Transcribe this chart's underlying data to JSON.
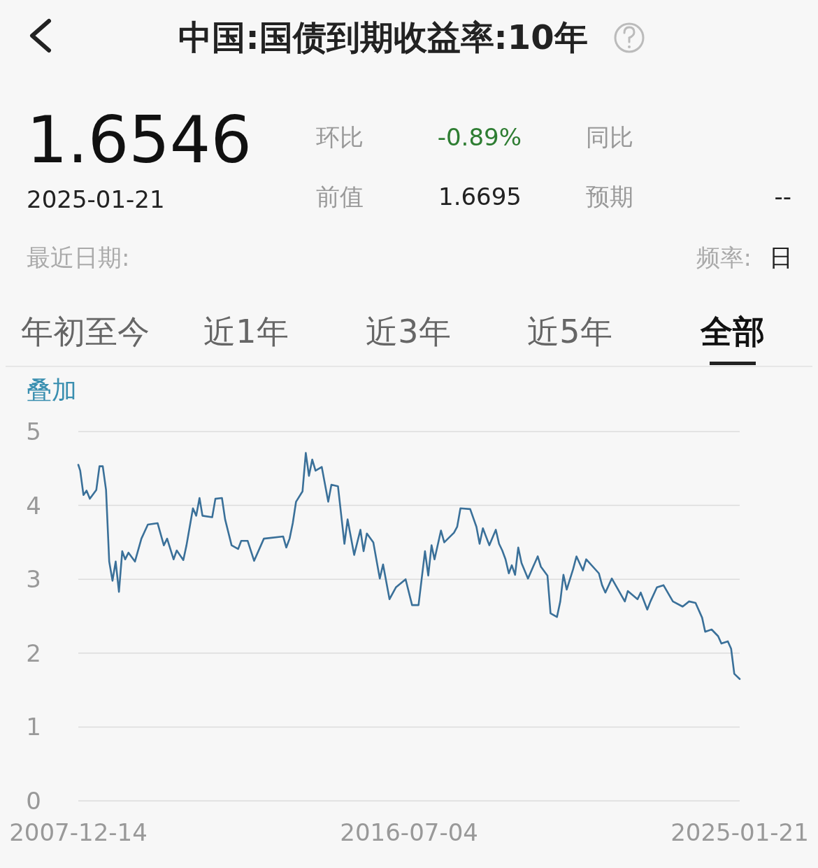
{
  "chart_data": {
    "type": "line",
    "title": "中国:国债到期收益率:10年",
    "annotations": [
      "1.6546",
      "2025-01-21",
      "环比",
      "-0.89%",
      "同比",
      "前值",
      "1.6695",
      "预期",
      "--",
      "最近日期:",
      "频率:",
      "日",
      "年初至今",
      "近1年",
      "近3年",
      "近5年",
      "全部",
      "叠加"
    ],
    "x": [
      "2007-12-14",
      "2008-01",
      "2008-02",
      "2008-03",
      "2008-04",
      "2008-06",
      "2008-07",
      "2008-08",
      "2008-09",
      "2008-10",
      "2008-11",
      "2008-12",
      "2009-01",
      "2009-02",
      "2009-03",
      "2009-04",
      "2009-06",
      "2009-08",
      "2009-10",
      "2010-01",
      "2010-03",
      "2010-04",
      "2010-06",
      "2010-07",
      "2010-09",
      "2010-10",
      "2010-12",
      "2011-01",
      "2011-02",
      "2011-03",
      "2011-06",
      "2011-07",
      "2011-09",
      "2011-10",
      "2011-12",
      "2012-02",
      "2012-03",
      "2012-05",
      "2012-07",
      "2012-10",
      "2013-04",
      "2013-05",
      "2013-06",
      "2013-07",
      "2013-08",
      "2013-10",
      "2013-11",
      "2013-12",
      "2014-01",
      "2014-02",
      "2014-04",
      "2014-06",
      "2014-07",
      "2014-09",
      "2014-11",
      "2014-12",
      "2015-02",
      "2015-04",
      "2015-05",
      "2015-06",
      "2015-08",
      "2015-10",
      "2015-11",
      "2016-01",
      "2016-03",
      "2016-06",
      "2016-08",
      "2016-10",
      "2016-12",
      "2017-01",
      "2017-02",
      "2017-03",
      "2017-05",
      "2017-06",
      "2017-09",
      "2017-10",
      "2017-11",
      "2018-02",
      "2018-04",
      "2018-05",
      "2018-06",
      "2018-08",
      "2018-10",
      "2018-11",
      "2018-12",
      "2019-01",
      "2019-02",
      "2019-03",
      "2019-04",
      "2019-05",
      "2019-06",
      "2019-08",
      "2019-11",
      "2019-12",
      "2020-02",
      "2020-03",
      "2020-05",
      "2020-06",
      "2020-07",
      "2020-08",
      "2020-10",
      "2020-11",
      "2021-01",
      "2021-02",
      "2021-06",
      "2021-07",
      "2021-08",
      "2021-10",
      "2022-02",
      "2022-03",
      "2022-06",
      "2022-07",
      "2022-09",
      "2022-10",
      "2022-12",
      "2023-02",
      "2023-05",
      "2023-08",
      "2023-10",
      "2023-12",
      "2024-02",
      "2024-03",
      "2024-05",
      "2024-07",
      "2024-08",
      "2024-10",
      "2024-11",
      "2024-12",
      "2025-01-21"
    ],
    "series": [
      {
        "color": "#3a7099",
        "values": [
          4.55,
          4.47,
          4.14,
          4.2,
          4.09,
          4.21,
          4.53,
          4.53,
          4.21,
          3.24,
          2.98,
          3.24,
          2.83,
          3.38,
          3.27,
          3.36,
          3.24,
          3.55,
          3.74,
          3.76,
          3.46,
          3.55,
          3.27,
          3.39,
          3.26,
          3.46,
          3.96,
          3.86,
          4.1,
          3.86,
          3.84,
          4.09,
          4.1,
          3.81,
          3.46,
          3.41,
          3.52,
          3.52,
          3.25,
          3.55,
          3.58,
          3.43,
          3.55,
          3.76,
          4.05,
          4.19,
          4.71,
          4.4,
          4.62,
          4.47,
          4.52,
          4.05,
          4.28,
          4.26,
          3.48,
          3.81,
          3.33,
          3.67,
          3.38,
          3.62,
          3.5,
          3.01,
          3.2,
          2.73,
          2.89,
          3.0,
          2.65,
          2.65,
          3.38,
          3.05,
          3.46,
          3.27,
          3.66,
          3.5,
          3.63,
          3.71,
          3.96,
          3.95,
          3.71,
          3.48,
          3.69,
          3.46,
          3.67,
          3.48,
          3.39,
          3.27,
          3.08,
          3.19,
          3.06,
          3.43,
          3.22,
          3.01,
          3.31,
          3.17,
          3.05,
          2.54,
          2.49,
          2.7,
          3.06,
          2.86,
          3.14,
          3.31,
          3.12,
          3.27,
          3.08,
          2.92,
          2.82,
          3.01,
          2.7,
          2.84,
          2.73,
          2.82,
          2.59,
          2.7,
          2.89,
          2.92,
          2.7,
          2.63,
          2.7,
          2.68,
          2.48,
          2.29,
          2.32,
          2.23,
          2.13,
          2.16,
          2.06,
          1.72,
          1.65
        ]
      }
    ],
    "xlim": [
      "2007-12-14",
      "2025-01-21"
    ],
    "xticks": [
      "2007-12-14",
      "2016-07-04",
      "2025-01-21"
    ],
    "ylim": [
      0,
      5
    ],
    "yticks": [
      0,
      1,
      2,
      3,
      4,
      5
    ],
    "grid": "y",
    "marker": "none",
    "line_style": "solid"
  }
}
